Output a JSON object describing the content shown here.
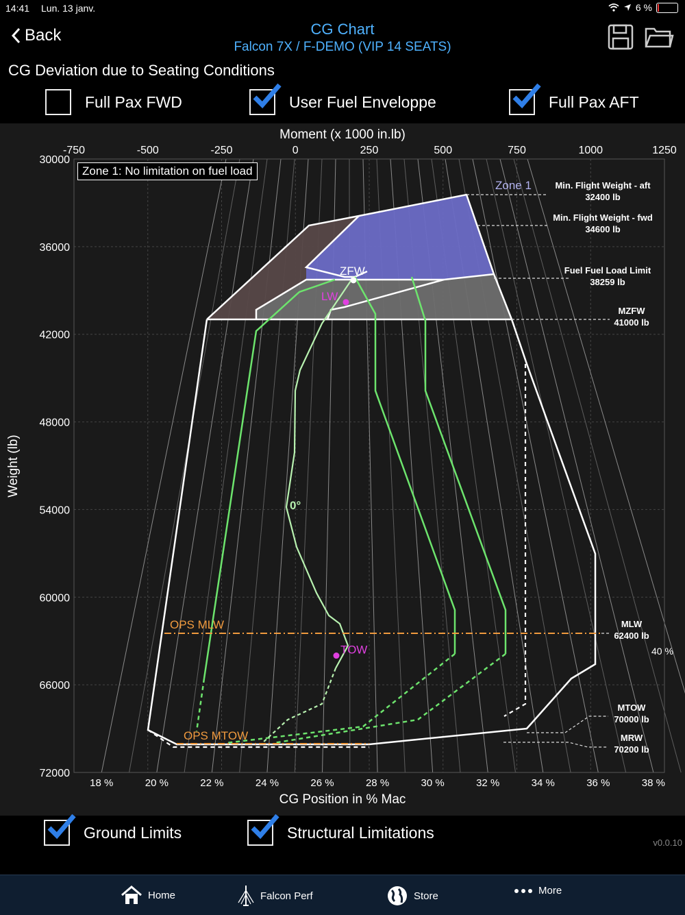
{
  "status_bar": {
    "time": "14:41",
    "date": "Lun. 13 janv.",
    "battery": "6 %"
  },
  "nav": {
    "back_label": "Back",
    "title": "CG Chart",
    "subtitle": "Falcon 7X / F-DEMO (VIP 14 SEATS)"
  },
  "section_title": "CG Deviation due to Seating Conditions",
  "options": {
    "full_pax_fwd": {
      "label": "Full Pax FWD",
      "checked": false
    },
    "user_fuel": {
      "label": "User Fuel Enveloppe",
      "checked": true
    },
    "full_pax_aft": {
      "label": "Full Pax AFT",
      "checked": true
    }
  },
  "chart_data": {
    "type": "line",
    "top_axis_title": "Moment (x 1000 in.lb)",
    "top_ticks": [
      "-750",
      "-500",
      "-250",
      "0",
      "250",
      "500",
      "750",
      "1000",
      "1250"
    ],
    "y_ticks": [
      "30000",
      "36000",
      "42000",
      "48000",
      "54000",
      "60000",
      "66000",
      "72000"
    ],
    "ylabel": "Weight (lb)",
    "xlabel": "CG Position in % Mac",
    "bottom_ticks": [
      "18 %",
      "20 %",
      "22 %",
      "24 %",
      "26 %",
      "28 %",
      "30 %",
      "32 %",
      "34 %",
      "36 %",
      "38 %"
    ],
    "xlim": [
      17,
      38.4
    ],
    "ylim": [
      72000,
      30000
    ],
    "grid": true,
    "zone_note": "Zone 1: No limitation on fuel load",
    "zone_label": "Zone 1",
    "right_labels": [
      {
        "title": "Min. Flight Weight - aft",
        "value": "32400 lb"
      },
      {
        "title": "Min. Flight Weight - fwd",
        "value": "34600 lb"
      },
      {
        "title": "Fuel Fuel Load Limit",
        "value": "38259 lb"
      },
      {
        "title": "MZFW",
        "value": "41000 lb"
      },
      {
        "title": "MLW",
        "value": "62400 lb"
      },
      {
        "title": "MTOW",
        "value": "70000 lb"
      },
      {
        "title": "MRW",
        "value": "70200 lb"
      }
    ],
    "percent_label": "40 %",
    "ops_mlw": {
      "label": "OPS MLW",
      "weight": 62400
    },
    "ops_mtow": {
      "label": "OPS MTOW",
      "weight": 70000
    },
    "angle_label": "0°",
    "points": [
      {
        "label": "ZFW",
        "cg": 27.2,
        "weight": 38300
      },
      {
        "label": "LW",
        "cg": 26.8,
        "weight": 39800
      },
      {
        "label": "TOW",
        "cg": 26.4,
        "weight": 64000
      }
    ]
  },
  "bottom_options": {
    "ground_limits": {
      "label": "Ground Limits",
      "checked": true
    },
    "structural": {
      "label": "Structural Limitations",
      "checked": true
    }
  },
  "version": "v0.0.10",
  "tabs": [
    {
      "label": "Home",
      "icon": "home-icon"
    },
    {
      "label": "Falcon Perf",
      "icon": "falcon-icon"
    },
    {
      "label": "Store",
      "icon": "globe-icon"
    },
    {
      "label": "More",
      "icon": "more-icon"
    }
  ]
}
